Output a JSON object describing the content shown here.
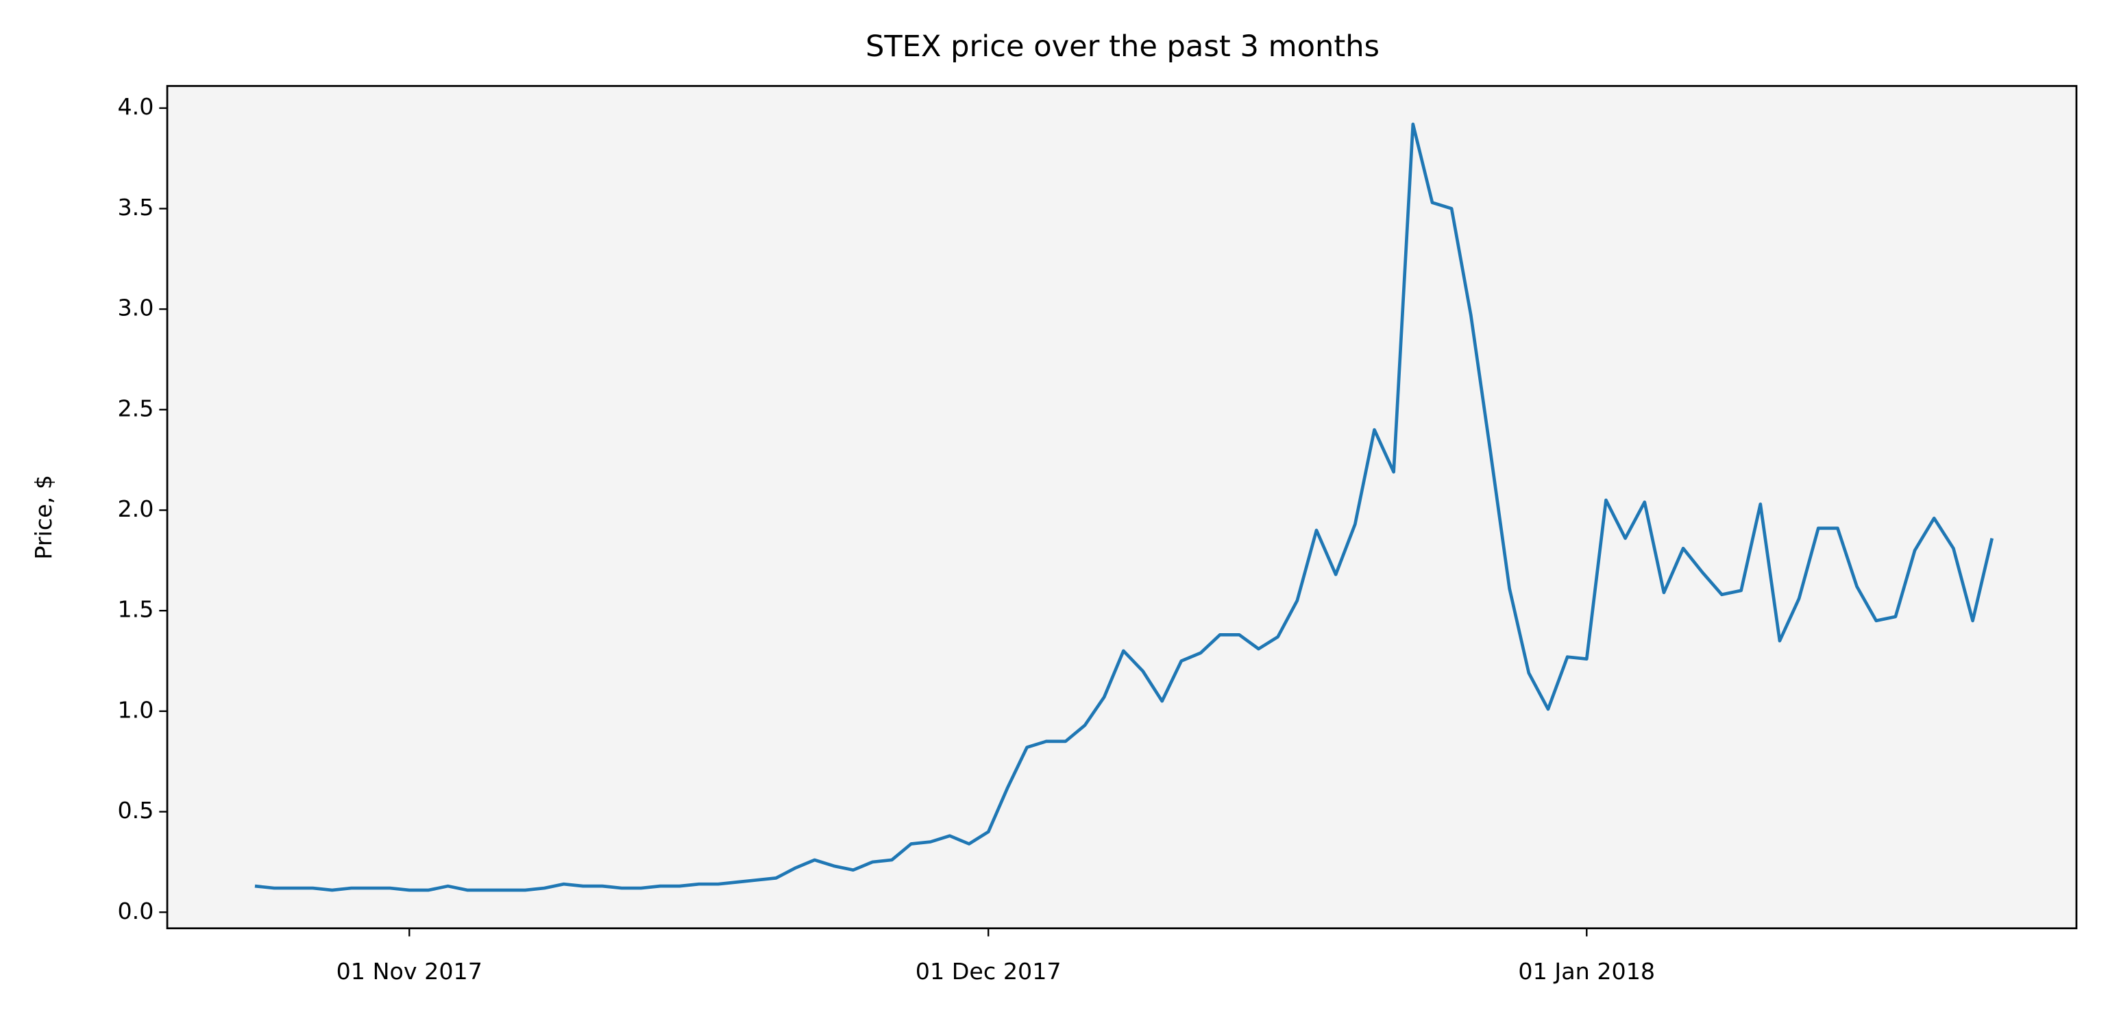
{
  "chart_data": {
    "type": "line",
    "title": "STEX price over the past 3 months",
    "y_label": "Price, $",
    "x": [
      "2017-10-24",
      "2017-10-25",
      "2017-10-26",
      "2017-10-27",
      "2017-10-28",
      "2017-10-29",
      "2017-10-30",
      "2017-10-31",
      "2017-11-01",
      "2017-11-02",
      "2017-11-03",
      "2017-11-04",
      "2017-11-05",
      "2017-11-06",
      "2017-11-07",
      "2017-11-08",
      "2017-11-09",
      "2017-11-10",
      "2017-11-11",
      "2017-11-12",
      "2017-11-13",
      "2017-11-14",
      "2017-11-15",
      "2017-11-16",
      "2017-11-17",
      "2017-11-18",
      "2017-11-19",
      "2017-11-20",
      "2017-11-21",
      "2017-11-22",
      "2017-11-23",
      "2017-11-24",
      "2017-11-25",
      "2017-11-26",
      "2017-11-27",
      "2017-11-28",
      "2017-11-29",
      "2017-11-30",
      "2017-12-01",
      "2017-12-02",
      "2017-12-03",
      "2017-12-04",
      "2017-12-05",
      "2017-12-06",
      "2017-12-07",
      "2017-12-08",
      "2017-12-09",
      "2017-12-10",
      "2017-12-11",
      "2017-12-12",
      "2017-12-13",
      "2017-12-14",
      "2017-12-15",
      "2017-12-16",
      "2017-12-17",
      "2017-12-18",
      "2017-12-19",
      "2017-12-20",
      "2017-12-21",
      "2017-12-22",
      "2017-12-23",
      "2017-12-24",
      "2017-12-25",
      "2017-12-26",
      "2017-12-27",
      "2017-12-28",
      "2017-12-29",
      "2017-12-30",
      "2017-12-31",
      "2018-01-01",
      "2018-01-02",
      "2018-01-03",
      "2018-01-04",
      "2018-01-05",
      "2018-01-06",
      "2018-01-07",
      "2018-01-08",
      "2018-01-09",
      "2018-01-10",
      "2018-01-11",
      "2018-01-12",
      "2018-01-13",
      "2018-01-14",
      "2018-01-15",
      "2018-01-16",
      "2018-01-17",
      "2018-01-18",
      "2018-01-19",
      "2018-01-20",
      "2018-01-21",
      "2018-01-22"
    ],
    "series": [
      {
        "color": "#1f77b4",
        "values": [
          0.13,
          0.12,
          0.12,
          0.12,
          0.11,
          0.12,
          0.12,
          0.12,
          0.11,
          0.11,
          0.13,
          0.11,
          0.11,
          0.11,
          0.11,
          0.12,
          0.14,
          0.13,
          0.13,
          0.12,
          0.12,
          0.13,
          0.13,
          0.14,
          0.14,
          0.15,
          0.16,
          0.17,
          0.22,
          0.26,
          0.23,
          0.21,
          0.25,
          0.26,
          0.34,
          0.35,
          0.38,
          0.34,
          0.4,
          0.62,
          0.82,
          0.85,
          0.85,
          0.93,
          1.07,
          1.3,
          1.2,
          1.05,
          1.25,
          1.29,
          1.38,
          1.38,
          1.31,
          1.37,
          1.55,
          1.9,
          1.68,
          1.93,
          2.4,
          2.19,
          3.92,
          3.53,
          3.5,
          2.97,
          2.3,
          1.61,
          1.19,
          1.01,
          1.27,
          1.26,
          2.05,
          1.86,
          2.04,
          1.59,
          1.81,
          1.69,
          1.58,
          1.6,
          2.03,
          1.35,
          1.56,
          1.91,
          1.91,
          1.62,
          1.45,
          1.47,
          1.8,
          1.96,
          1.81,
          1.45,
          1.86
        ]
      }
    ],
    "xlim": [
      "2017-10-19T11:00",
      "2018-01-26T09:00"
    ],
    "xticks": [
      {
        "value": "2017-11-01",
        "label": "01 Nov 2017"
      },
      {
        "value": "2017-12-01",
        "label": "01 Dec 2017"
      },
      {
        "value": "2018-01-01",
        "label": "01 Jan 2018"
      }
    ],
    "ylim": [
      -0.08,
      4.11
    ],
    "yticks": [
      {
        "value": 0,
        "label": "0.0"
      },
      0.5,
      {
        "value": 1,
        "label": "1.0"
      },
      1.5,
      {
        "value": 2,
        "label": "2.0"
      },
      2.5,
      {
        "value": 3,
        "label": "3.0"
      },
      3.5,
      {
        "value": 4,
        "label": "4.0"
      }
    ],
    "background": "#f4f4f4",
    "grid": false
  }
}
